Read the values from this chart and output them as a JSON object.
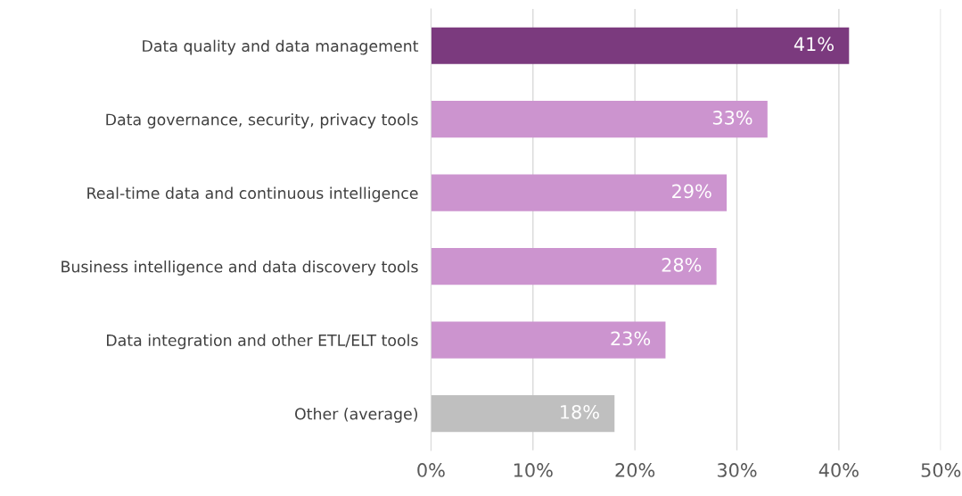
{
  "chart_data": {
    "type": "bar",
    "orientation": "horizontal",
    "categories": [
      "Data quality and data management",
      "Data governance, security, privacy tools",
      "Real-time data and continuous intelligence",
      "Business intelligence and data discovery tools",
      "Data integration and other ETL/ELT tools",
      "Other (average)"
    ],
    "values": [
      41,
      33,
      29,
      28,
      23,
      18
    ],
    "colors": [
      "#7b3a7e",
      "#cc94cf",
      "#cc94cf",
      "#cc94cf",
      "#cc94cf",
      "#bfbfbf"
    ],
    "value_labels": [
      "41%",
      "33%",
      "29%",
      "28%",
      "23%",
      "18%"
    ],
    "xlim": [
      0,
      50
    ],
    "xticks": [
      {
        "value": 0,
        "label": "0%"
      },
      {
        "value": 10,
        "label": "10%"
      },
      {
        "value": 20,
        "label": "20%"
      },
      {
        "value": 30,
        "label": "30%"
      },
      {
        "value": 40,
        "label": "40%"
      },
      {
        "value": 50,
        "label": "50%"
      }
    ],
    "grid": "x",
    "legend": false
  }
}
